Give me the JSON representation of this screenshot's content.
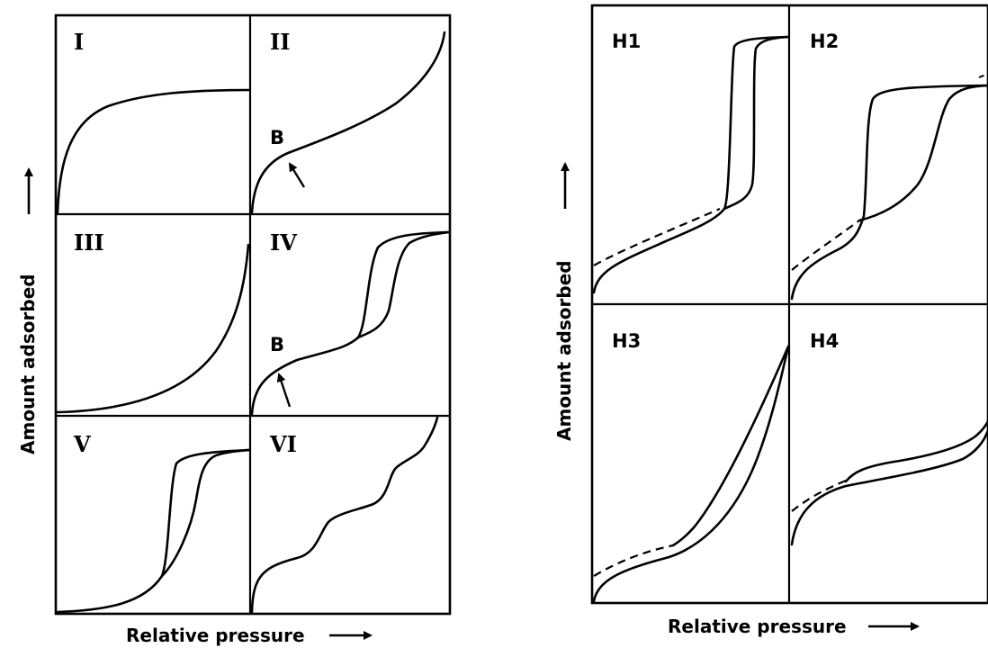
{
  "left_figure": {
    "panel_labels": [
      "I",
      "II",
      "III",
      "IV",
      "V",
      "VI"
    ],
    "point_label_ii": "B",
    "point_label_iv": "B",
    "x_axis_label": "Relative pressure",
    "y_axis_label": "Amount adsorbed"
  },
  "right_figure": {
    "panel_labels": [
      "H1",
      "H2",
      "H3",
      "H4"
    ],
    "x_axis_label": "Relative pressure",
    "y_axis_label": "Amount adsorbed"
  }
}
